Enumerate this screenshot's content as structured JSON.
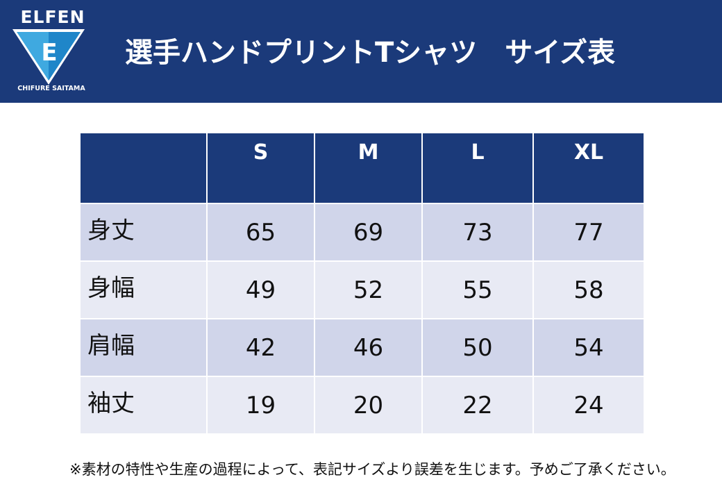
{
  "header": {
    "logo_text": "ELFEN",
    "logo_letter": "E",
    "logo_sub": "CHIFURE SAITAMA",
    "title": "選手ハンドプリントTシャツ　サイズ表"
  },
  "table": {
    "corner": "",
    "columns": [
      "S",
      "M",
      "L",
      "XL"
    ],
    "rows": [
      {
        "label": "身丈",
        "values": [
          "65",
          "69",
          "73",
          "77"
        ]
      },
      {
        "label": "身幅",
        "values": [
          "49",
          "52",
          "55",
          "58"
        ]
      },
      {
        "label": "肩幅",
        "values": [
          "42",
          "46",
          "50",
          "54"
        ]
      },
      {
        "label": "袖丈",
        "values": [
          "19",
          "20",
          "22",
          "24"
        ]
      }
    ]
  },
  "note": "※素材の特性や生産の過程によって、表記サイズより誤差を生じます。予めご了承ください。",
  "colors": {
    "header_bg": "#1b3a7a",
    "row_odd": "#d0d5ea",
    "row_even": "#e8eaf4",
    "logo_blue": "#3fa9e0"
  }
}
